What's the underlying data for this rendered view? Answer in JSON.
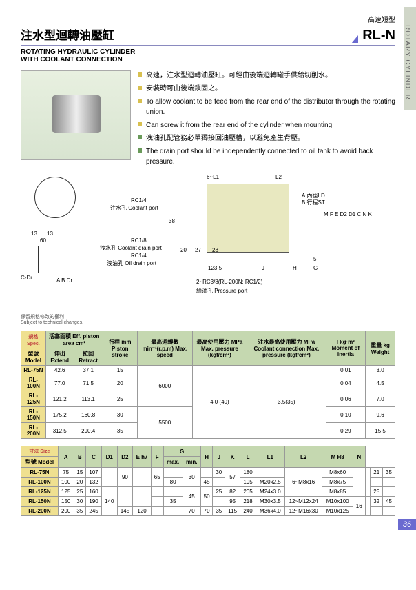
{
  "sideTab": "ROTARY  CYLINDER",
  "header": {
    "topRight": "高速短型",
    "titleCn": "注水型迴轉油壓缸",
    "code": "RL-N",
    "titleEn1": "ROTATING  HYDRAULIC  CYLINDER",
    "titleEn2": "WITH COOLANT CONNECTION"
  },
  "features": {
    "f1": "高速，注水型迴轉油壓缸。可經由後端迴轉罐手供給切削水。",
    "f2": "安裝時可由後端鎖固之。",
    "f3": "To allow coolant to be feed from the rear end of the distributor through the rotating union.",
    "f4": "Can screw it from the rear end of the cylinder when mounting.",
    "f5": "洩油孔配管務必單獨接回油壓槽，以避免產生背壓。",
    "f6": "The drain port should be independently connected to oil tank to avoid back pressure."
  },
  "diagram": {
    "l1": "6~L1",
    "l2": "L2",
    "rc14": "RC1/4",
    "coolant": "注水孔 Coolant port",
    "num38": "38",
    "rc18": "RC1/8",
    "coolantDrain": "洩水孔 Coolant drain port",
    "rc14b": "RC1/4",
    "oilDrain": "洩油孔 Oil drain port",
    "d13a": "13",
    "d13b": "13",
    "d60": "60",
    "n20": "20",
    "n27": "27",
    "n28": "28",
    "aid": "A:內徑I.D.",
    "bst": "B:行程ST.",
    "d1235": "123.5",
    "lJ": "J",
    "lH": "H",
    "lG": "G",
    "n5": "5",
    "letters": "M F E D2 D1 C  N K",
    "pressure": "2~RC3/8(RL-200N: RC1/2)",
    "pressurePort": "給油孔 Pressure port",
    "cdr": "C-Dr",
    "abdr": "A  B   Dr",
    "note": "保留規格修改的權利",
    "noteEn": "Subject to technical changes."
  },
  "table1": {
    "h_spec": "規格 Spec.",
    "h_model": "型號 Model",
    "h_area": "活塞面積  Eff. piston area  cm²",
    "h_extend": "伸出 Extend",
    "h_retract": "拉回 Retract",
    "h_stroke": "行程 mm Piston stroke",
    "h_speed": "最高迴轉數 min⁻¹(r.p.m) Max. speed",
    "h_pressure": "最高使用壓力 MPa Max. pressure (kgf/cm²)",
    "h_coolant": "注水最高使用壓力 MPa Coolant connection Max. pressure (kgf/cm²)",
    "h_inertia": "I   kg·m² Moment of inertia",
    "h_weight": "重量 kg Weight",
    "rows": [
      {
        "model": "RL-75N",
        "ext": "42.6",
        "ret": "37.1",
        "stroke": "15",
        "spd": "6000",
        "prs": "4.0 (40)",
        "cool": "3.5(35)",
        "in": "0.01",
        "wt": "3.0"
      },
      {
        "model": "RL-100N",
        "ext": "77.0",
        "ret": "71.5",
        "stroke": "20",
        "spd": "",
        "prs": "",
        "cool": "",
        "in": "0.04",
        "wt": "4.5"
      },
      {
        "model": "RL-125N",
        "ext": "121.2",
        "ret": "113.1",
        "stroke": "25",
        "spd": "",
        "prs": "",
        "cool": "",
        "in": "0.06",
        "wt": "7.0"
      },
      {
        "model": "RL-150N",
        "ext": "175.2",
        "ret": "160.8",
        "stroke": "30",
        "spd": "5500",
        "prs": "",
        "cool": "",
        "in": "0.10",
        "wt": "9.6"
      },
      {
        "model": "RL-200N",
        "ext": "312.5",
        "ret": "290.4",
        "stroke": "35",
        "spd": "",
        "prs": "",
        "cool": "",
        "in": "0.29",
        "wt": "15.5"
      }
    ]
  },
  "table2": {
    "h_size": "寸法 Size",
    "h_model": "型號 Model",
    "cols": [
      "A",
      "B",
      "C",
      "D1",
      "D2",
      "E h7",
      "F",
      "G",
      "H",
      "J",
      "K",
      "L",
      "L1",
      "L2",
      "M H8",
      "N"
    ],
    "g_max": "max.",
    "g_min": "min.",
    "rows": [
      {
        "model": "RL-75N",
        "v": [
          "75",
          "15",
          "107",
          "",
          "90",
          "",
          "65",
          "",
          "30",
          "",
          "30",
          "57",
          "180",
          "",
          "6~M8x16",
          "M8x60",
          "",
          "",
          "21",
          "35"
        ]
      },
      {
        "model": "RL-100N",
        "v": [
          "100",
          "20",
          "132",
          "115",
          "100",
          "80",
          "",
          "80",
          "30",
          "45",
          "",
          "72",
          "195",
          "M20x2.5",
          "6~M10x20",
          "M8x75",
          "",
          "12",
          "",
          ""
        ]
      },
      {
        "model": "RL-125N",
        "v": [
          "125",
          "25",
          "160",
          "140",
          "",
          "",
          "",
          "",
          "45",
          "50",
          "25",
          "82",
          "205",
          "M24x3.0",
          "6~M12x20",
          "M8x85",
          "",
          "",
          "25",
          ""
        ]
      },
      {
        "model": "RL-150N",
        "v": [
          "150",
          "30",
          "190",
          "170",
          "",
          "110",
          "",
          "35",
          "45",
          "55",
          "",
          "95",
          "218",
          "M30x3.5",
          "12~M12x24",
          "M10x100",
          "16",
          "",
          "32",
          "45"
        ]
      },
      {
        "model": "RL-200N",
        "v": [
          "200",
          "35",
          "245",
          "220",
          "145",
          "120",
          "",
          "",
          "70",
          "70",
          "35",
          "115",
          "240",
          "M36x4.0",
          "12~M16x30",
          "M10x125",
          "",
          "21",
          "",
          ""
        ]
      }
    ]
  },
  "pageNum": "36"
}
